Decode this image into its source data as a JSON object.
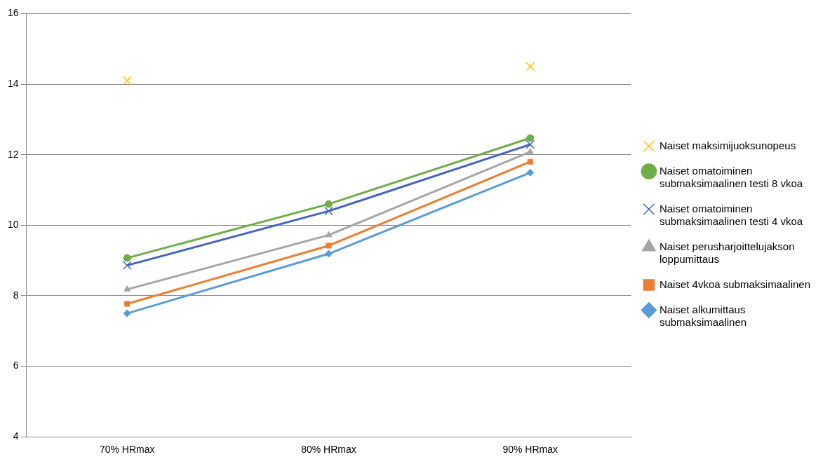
{
  "chart_data": {
    "type": "line",
    "categories": [
      "70% HRmax",
      "80% HRmax",
      "90% HRmax"
    ],
    "ylim": [
      4,
      16
    ],
    "yticks": [
      4,
      6,
      8,
      10,
      12,
      14,
      16
    ],
    "grid": "y",
    "legend": "right",
    "series": [
      {
        "name": "Naiset maksimijuoksunopeus",
        "type": "scatter",
        "marker": "cross",
        "color": "#ffc000",
        "values": [
          14.1,
          null,
          14.5
        ]
      },
      {
        "name": "Naiset omatoiminen submaksimaalinen testi 8 vkoa",
        "marker": "circle",
        "color": "#70ad47",
        "values": [
          9.07,
          10.6,
          12.47
        ]
      },
      {
        "name": "Naiset omatoiminen submaksimaalinen testi 4 vkoa",
        "marker": "cross",
        "color": "#4363c0",
        "values": [
          8.86,
          10.4,
          12.29
        ]
      },
      {
        "name": "Naiset perusharjoittelujakson loppumittaus",
        "marker": "triangle",
        "color": "#a5a5a5",
        "values": [
          8.18,
          9.72,
          12.08
        ]
      },
      {
        "name": "Naiset 4vkoa submaksimaalinen",
        "marker": "square",
        "color": "#ed7d31",
        "values": [
          7.77,
          9.42,
          11.8
        ]
      },
      {
        "name": "Naiset alkumittaus submaksimaalinen",
        "marker": "diamond",
        "color": "#5b9bd5",
        "values": [
          7.5,
          9.19,
          11.49
        ]
      }
    ]
  }
}
